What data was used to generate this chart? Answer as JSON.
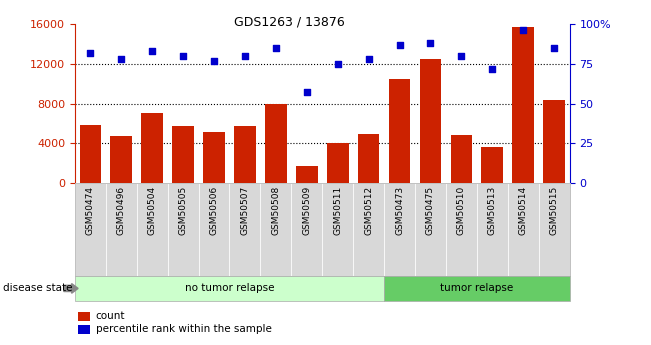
{
  "title": "GDS1263 / 13876",
  "samples": [
    "GSM50474",
    "GSM50496",
    "GSM50504",
    "GSM50505",
    "GSM50506",
    "GSM50507",
    "GSM50508",
    "GSM50509",
    "GSM50511",
    "GSM50512",
    "GSM50473",
    "GSM50475",
    "GSM50510",
    "GSM50513",
    "GSM50514",
    "GSM50515"
  ],
  "counts": [
    5800,
    4700,
    7000,
    5700,
    5100,
    5700,
    7900,
    1700,
    4000,
    4900,
    10500,
    12500,
    4800,
    3600,
    15700,
    8400
  ],
  "percentiles": [
    82,
    78,
    83,
    80,
    77,
    80,
    85,
    57,
    75,
    78,
    87,
    88,
    80,
    72,
    96,
    85
  ],
  "no_tumor_count": 10,
  "tumor_count": 6,
  "bar_color": "#cc2200",
  "dot_color": "#0000cc",
  "left_ylim": [
    0,
    16000
  ],
  "right_ylim": [
    0,
    100
  ],
  "left_yticks": [
    0,
    4000,
    8000,
    12000,
    16000
  ],
  "right_yticks": [
    0,
    25,
    50,
    75,
    100
  ],
  "right_yticklabels": [
    "0",
    "25",
    "50",
    "75",
    "100%"
  ],
  "no_tumor_color": "#ccffcc",
  "tumor_color": "#66cc66",
  "disease_label": "disease state",
  "no_tumor_label": "no tumor relapse",
  "tumor_label": "tumor relapse",
  "count_legend": "count",
  "percentile_legend": "percentile rank within the sample",
  "bg_color": "#ffffff",
  "tick_bg_color": "#d8d8d8",
  "grid_dotted_vals": [
    4000,
    8000,
    12000
  ]
}
